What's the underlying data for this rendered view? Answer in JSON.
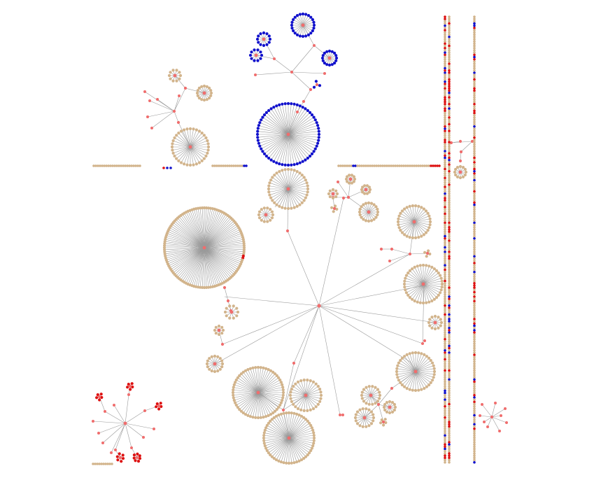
{
  "diagram": {
    "type": "network-graph",
    "background": "#ffffff",
    "colors": {
      "edge": "#9a9a9a",
      "hub": "#f06d6d",
      "leaf_tan": "#d2b48c",
      "leaf_blue": "#1111cc",
      "leaf_red": "#dd1111"
    },
    "legend": null
  }
}
